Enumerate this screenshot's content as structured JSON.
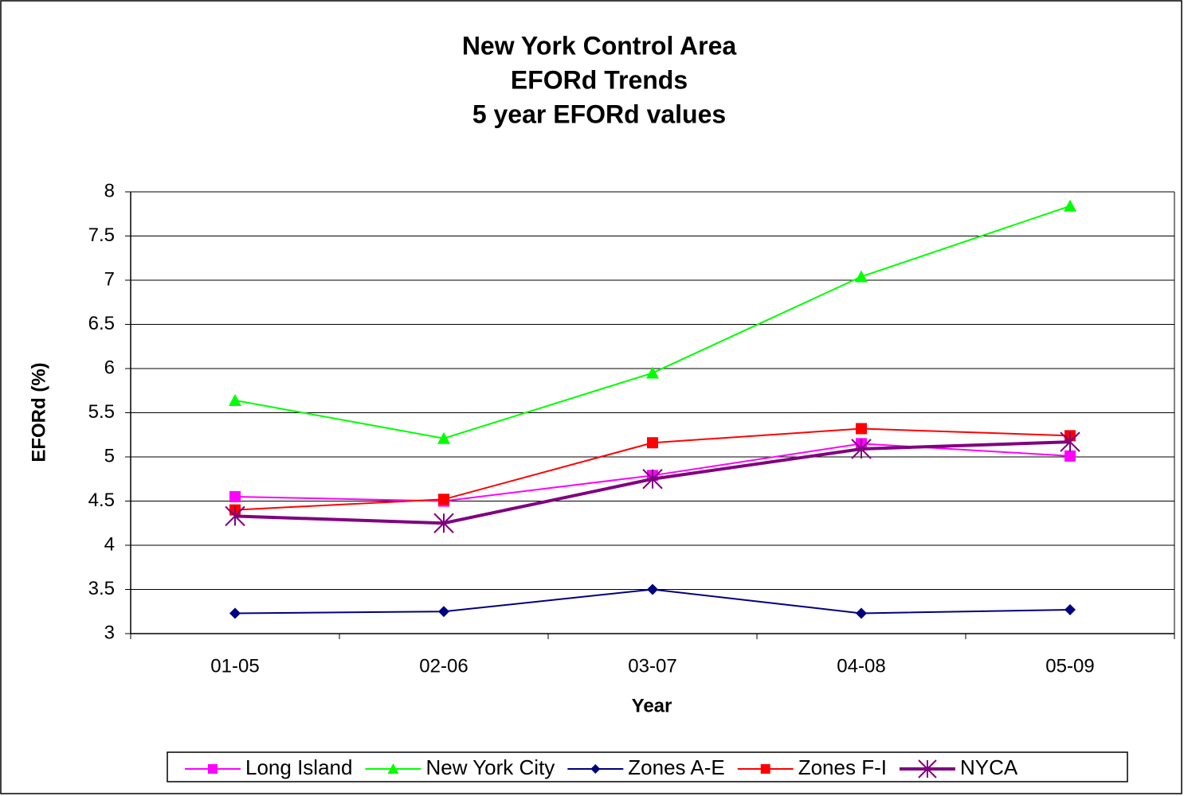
{
  "chart_data": {
    "type": "line",
    "title_lines": [
      "New York Control Area",
      "EFORd Trends",
      "5 year EFORd values"
    ],
    "x_label": "Year",
    "y_label": "EFORd (%)",
    "categories": [
      "01-05",
      "02-06",
      "03-07",
      "04-08",
      "05-09"
    ],
    "ylim": [
      3,
      8
    ],
    "yticks": [
      3,
      3.5,
      4,
      4.5,
      5,
      5.5,
      6,
      6.5,
      7,
      7.5,
      8
    ],
    "grid": true,
    "legend": "bottom",
    "series": [
      {
        "name": "Long Island",
        "color": "#ff00ff",
        "marker": "square",
        "line_width": 2,
        "values": [
          4.55,
          4.5,
          4.79,
          5.15,
          5.01
        ]
      },
      {
        "name": "New York City",
        "color": "#00ff00",
        "marker": "triangle",
        "line_width": 2,
        "values": [
          5.64,
          5.21,
          5.95,
          7.04,
          7.84
        ]
      },
      {
        "name": "Zones A-E",
        "color": "#000080",
        "marker": "diamond",
        "line_width": 2,
        "values": [
          3.23,
          3.25,
          3.5,
          3.23,
          3.27
        ]
      },
      {
        "name": "Zones F-I",
        "color": "#ff0000",
        "marker": "square",
        "line_width": 2,
        "values": [
          4.4,
          4.52,
          5.16,
          5.32,
          5.24
        ]
      },
      {
        "name": "NYCA",
        "color": "#800080",
        "marker": "asterisk",
        "line_width": 4,
        "values": [
          4.33,
          4.25,
          4.75,
          5.09,
          5.17
        ]
      }
    ]
  }
}
